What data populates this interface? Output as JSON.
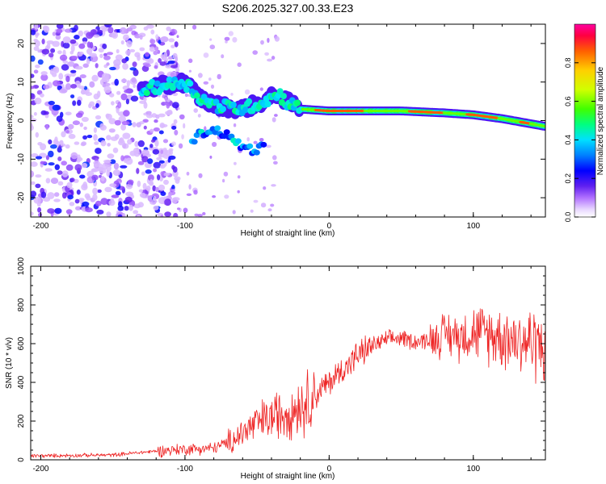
{
  "title": "S206.2025.327.00.33.E23",
  "chart_data": [
    {
      "type": "heatmap",
      "title": "S206.2025.327.00.33.E23",
      "xlabel": "Height of straight line (km)",
      "ylabel": "Frequency (Hz)",
      "xlim": [
        -207,
        150
      ],
      "ylim": [
        -25,
        25
      ],
      "xticks": [
        "-200",
        "-100",
        "0",
        "100"
      ],
      "yticks": [
        "20",
        "10",
        "0",
        "-10",
        "-20"
      ],
      "colorbar": {
        "label": "Normalized spectral amplitude",
        "range": [
          0,
          1
        ],
        "ticks": [
          "0.0",
          "0.2",
          "0.4",
          "0.6",
          "0.8"
        ]
      },
      "ridge": {
        "x": [
          -130,
          -115,
          -100,
          -90,
          -80,
          -60,
          -45,
          -35,
          -30,
          -20,
          0,
          20,
          50,
          80,
          100,
          120,
          150
        ],
        "y": [
          8,
          9,
          10,
          6,
          4,
          3,
          5,
          7,
          5,
          3,
          2.5,
          2.5,
          2.5,
          2,
          1.5,
          0.5,
          -1.5
        ]
      },
      "noise_region_x": [
        -207,
        -130
      ]
    },
    {
      "type": "line",
      "xlabel": "Height of straight line (km)",
      "ylabel": "SNR (10 * v/v)",
      "xlim": [
        -207,
        150
      ],
      "ylim": [
        0,
        1000
      ],
      "xticks": [
        "-200",
        "-100",
        "0",
        "100"
      ],
      "yticks": [
        "0",
        "200",
        "400",
        "600",
        "800",
        "1000"
      ],
      "series": [
        {
          "name": "SNR",
          "color": "#ee2222",
          "trend_x": [
            -207,
            -150,
            -120,
            -100,
            -80,
            -70,
            -60,
            -50,
            -40,
            -30,
            -20,
            -10,
            0,
            10,
            20,
            30,
            40,
            50,
            60,
            70,
            80,
            90,
            100,
            110,
            120,
            130,
            140,
            150
          ],
          "trend_y": [
            20,
            25,
            45,
            55,
            60,
            90,
            140,
            190,
            220,
            250,
            280,
            330,
            400,
            470,
            540,
            590,
            620,
            630,
            610,
            620,
            650,
            640,
            660,
            650,
            640,
            620,
            610,
            590
          ]
        }
      ]
    }
  ]
}
